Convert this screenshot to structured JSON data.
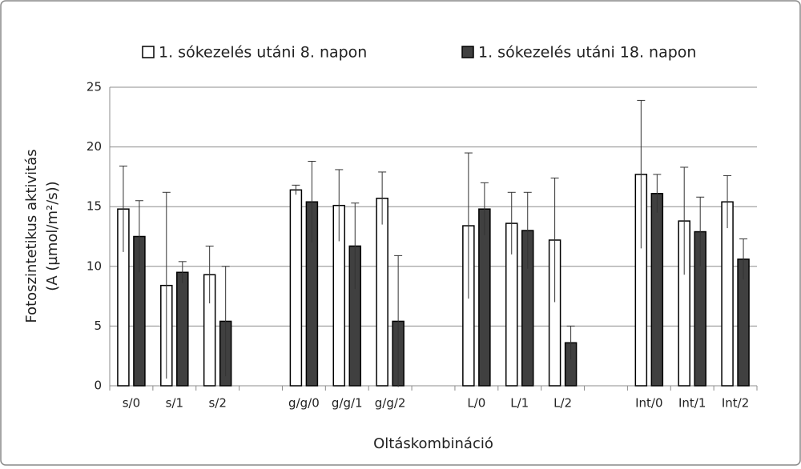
{
  "chart_data": {
    "type": "bar",
    "x_label": "Oltáskombináció",
    "y_label": [
      "Fotoszintetikus aktivitás",
      "(A (µmol/m²/s))"
    ],
    "categories": [
      "s/0",
      "s/1",
      "s/2",
      null,
      "g/g/0",
      "g/g/1",
      "g/g/2",
      null,
      "L/0",
      "L/1",
      "L/2",
      null,
      "Int/0",
      "Int/1",
      "Int/2"
    ],
    "series": [
      {
        "name": "1. sókezelés utáni 8. napon",
        "color": "#ffffff",
        "values": [
          14.8,
          8.4,
          9.3,
          null,
          16.4,
          15.1,
          15.7,
          null,
          13.4,
          13.6,
          12.2,
          null,
          17.7,
          13.8,
          15.4
        ],
        "errors": [
          3.6,
          7.8,
          2.4,
          null,
          0.4,
          3.0,
          2.2,
          null,
          6.1,
          2.6,
          5.2,
          null,
          6.2,
          4.5,
          2.2
        ]
      },
      {
        "name": "1. sókezelés utáni 18. napon",
        "color": "#404040",
        "values": [
          12.5,
          9.5,
          5.4,
          null,
          15.4,
          11.7,
          5.4,
          null,
          14.8,
          13.0,
          3.6,
          null,
          16.1,
          12.9,
          10.6
        ],
        "errors": [
          3.0,
          0.9,
          4.6,
          null,
          3.4,
          3.6,
          5.5,
          null,
          2.2,
          3.2,
          1.4,
          null,
          1.6,
          2.9,
          1.7
        ]
      }
    ],
    "ylim": [
      0,
      25
    ],
    "yticks": [
      0,
      5,
      10,
      15,
      20,
      25
    ],
    "grid": true,
    "legend": "top"
  }
}
